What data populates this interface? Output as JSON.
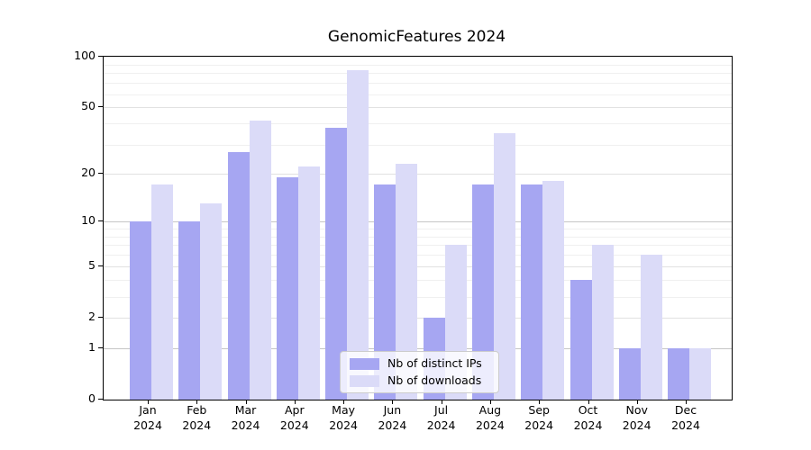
{
  "title": "GenomicFeatures 2024",
  "year": "2024",
  "chart_data": {
    "type": "bar",
    "title": "GenomicFeatures 2024",
    "categories": [
      "Jan",
      "Feb",
      "Mar",
      "Apr",
      "May",
      "Jun",
      "Jul",
      "Aug",
      "Sep",
      "Oct",
      "Nov",
      "Dec"
    ],
    "year": "2024",
    "series": [
      {
        "name": "Nb of distinct IPs",
        "color": "#a6a6f2",
        "values": [
          10,
          10,
          27,
          19,
          38,
          17,
          2,
          17,
          17,
          4,
          1,
          1
        ]
      },
      {
        "name": "Nb of downloads",
        "color": "#dbdbf8",
        "values": [
          17,
          13,
          42,
          22,
          83,
          23,
          7,
          35,
          18,
          7,
          6,
          1
        ]
      }
    ],
    "yscale": "log1p",
    "ylim": [
      0,
      100
    ],
    "yticks": [
      0,
      1,
      2,
      5,
      10,
      20,
      50,
      100
    ],
    "grid_values": {
      "strong": [
        1,
        10
      ],
      "medium": [
        2,
        5,
        20,
        50
      ],
      "light": [
        3,
        4,
        6,
        7,
        8,
        9,
        30,
        40,
        60,
        70,
        80,
        90
      ]
    },
    "grid": true,
    "legend_position": "lower center",
    "xlabel": "",
    "ylabel": ""
  }
}
